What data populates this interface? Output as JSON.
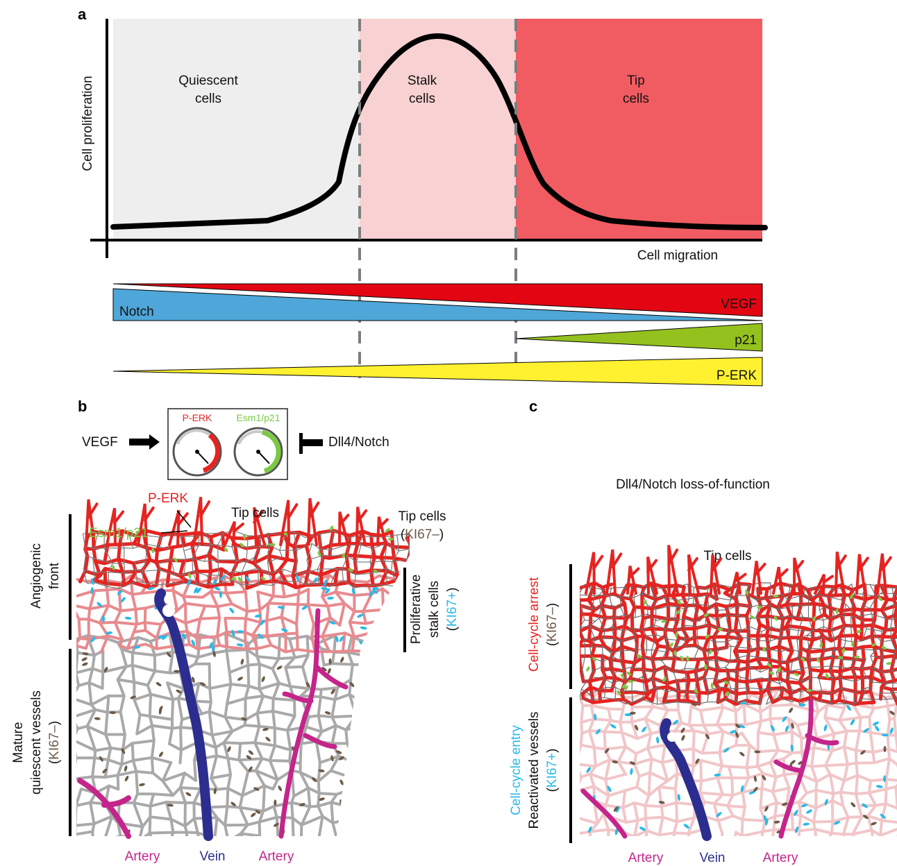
{
  "panel_a": {
    "letter": "a",
    "y_axis_label": "Cell proliferation",
    "x_axis_label": "Cell migration",
    "zone_quiescent": {
      "line1": "Quiescent",
      "line2": "cells"
    },
    "zone_stalk": {
      "line1": "Stalk",
      "line2": "cells"
    },
    "zone_tip": {
      "line1": "Tip",
      "line2": "cells"
    },
    "gradients": {
      "vegf": "VEGF",
      "notch": "Notch",
      "p21": "p21",
      "perk": "P-ERK"
    }
  },
  "panel_b": {
    "letter": "b",
    "vegf_label": "VEGF",
    "dll4_label": "Dll4/Notch",
    "gauge_perk": "P-ERK",
    "gauge_esm1": "Esm1/p21",
    "callout_perk": "P-ERK",
    "callout_esm1": "Esm1/p21",
    "tip_cells": "Tip cells",
    "tip_cells_right": "Tip cells",
    "tip_cells_ki67": {
      "open": "(",
      "marker": "KI67–",
      "close": ")"
    },
    "angiogenic_front": {
      "line1": "Angiogenic",
      "line2": "front"
    },
    "prolif_stalk": {
      "line1": "Proliferative",
      "line2": "stalk cells",
      "open": "(",
      "marker": "KI67+",
      "close": ")"
    },
    "mature": {
      "line1": "Mature",
      "line2": "quiescent vessels",
      "open": "(",
      "marker": "KI67–",
      "close": ")"
    },
    "artery_left": "Artery",
    "vein": "Vein",
    "artery_right": "Artery"
  },
  "panel_c": {
    "letter": "c",
    "title": "Dll4/Notch loss-of-function",
    "tip_cells": "Tip cells",
    "arrest": {
      "line1": "Cell-cycle arrest",
      "open": "(",
      "marker": "KI67–",
      "close": ")"
    },
    "reactivated": {
      "line1": "Cell-cycle entry",
      "line2": "Reactivated vessels",
      "open": "(",
      "marker": "KI67+",
      "close": ")"
    },
    "artery_left": "Artery",
    "vein": "Vein",
    "artery_right": "Artery"
  },
  "colors": {
    "quiescent_bg": "#edeeed",
    "stalk_bg": "#f8d1d2",
    "tip_bg": "#f15c62",
    "vegf": "#e20613",
    "notch": "#4fa6d8",
    "p21": "#95c11f",
    "perk": "#fff130",
    "artery": "#c4258b",
    "vein": "#2b2e8e",
    "ki67_plus": "#29b9e8",
    "ki67_minus": "#6b5a47",
    "esm1": "#7ac943",
    "perk_text": "#e52421",
    "vessel_gray": "#a9a9a9",
    "vessel_pink": "#e88a8e"
  }
}
